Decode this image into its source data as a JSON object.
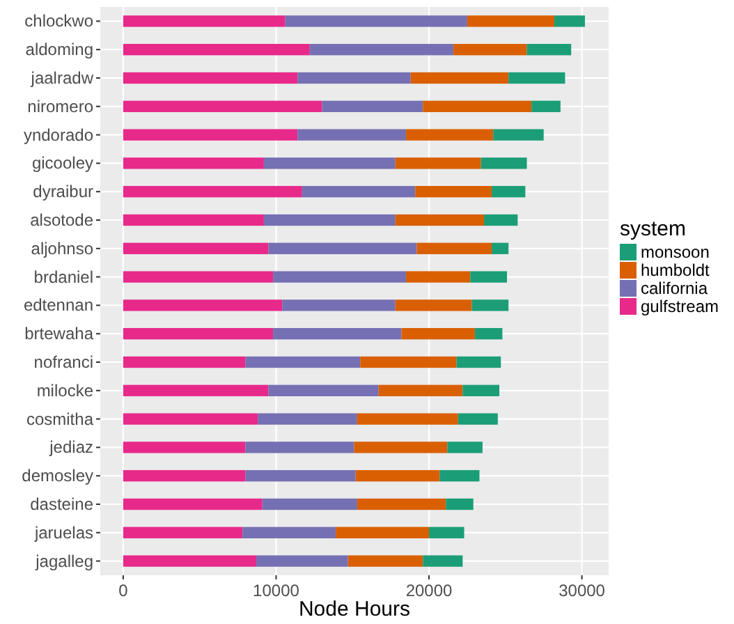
{
  "chart_data": {
    "type": "bar",
    "orientation": "horizontal",
    "stacked": true,
    "xlabel": "Node Hours",
    "legend_title": "system",
    "legend": "right",
    "grid": true,
    "categories": [
      "chlockwo",
      "aldoming",
      "jaalradw",
      "niromero",
      "yndorado",
      "gicooley",
      "dyraibur",
      "alsotode",
      "aljohnso",
      "brdaniel",
      "edtennan",
      "brtewaha",
      "nofranci",
      "milocke",
      "cosmitha",
      "jediaz",
      "demosley",
      "dasteine",
      "jaruelas",
      "jagalleg"
    ],
    "xlim": [
      -1500,
      31750
    ],
    "xticks": [
      0,
      10000,
      20000,
      30000
    ],
    "series": [
      {
        "name": "gulfstream",
        "color": "#e7298a",
        "values": [
          10600,
          12200,
          11400,
          13000,
          11400,
          9200,
          11700,
          9200,
          9500,
          9800,
          10400,
          9800,
          8000,
          9500,
          8800,
          8000,
          8000,
          9100,
          7800,
          8700
        ]
      },
      {
        "name": "california",
        "color": "#7570b3",
        "values": [
          11900,
          9400,
          7400,
          6600,
          7100,
          8600,
          7400,
          8600,
          9700,
          8700,
          7400,
          8400,
          7500,
          7200,
          6500,
          7100,
          7200,
          6200,
          6100,
          6000
        ]
      },
      {
        "name": "humboldt",
        "color": "#d95f02",
        "values": [
          5700,
          4800,
          6400,
          7100,
          5700,
          5600,
          5000,
          5800,
          4900,
          4200,
          5000,
          4800,
          6300,
          5500,
          6600,
          6100,
          5500,
          5800,
          6100,
          4900
        ]
      },
      {
        "name": "monsoon",
        "color": "#1b9e77",
        "values": [
          2000,
          2900,
          3700,
          1900,
          3300,
          3000,
          2200,
          2200,
          1100,
          2400,
          2400,
          1800,
          2900,
          2400,
          2600,
          2300,
          2600,
          1800,
          2300,
          2600
        ]
      }
    ]
  }
}
